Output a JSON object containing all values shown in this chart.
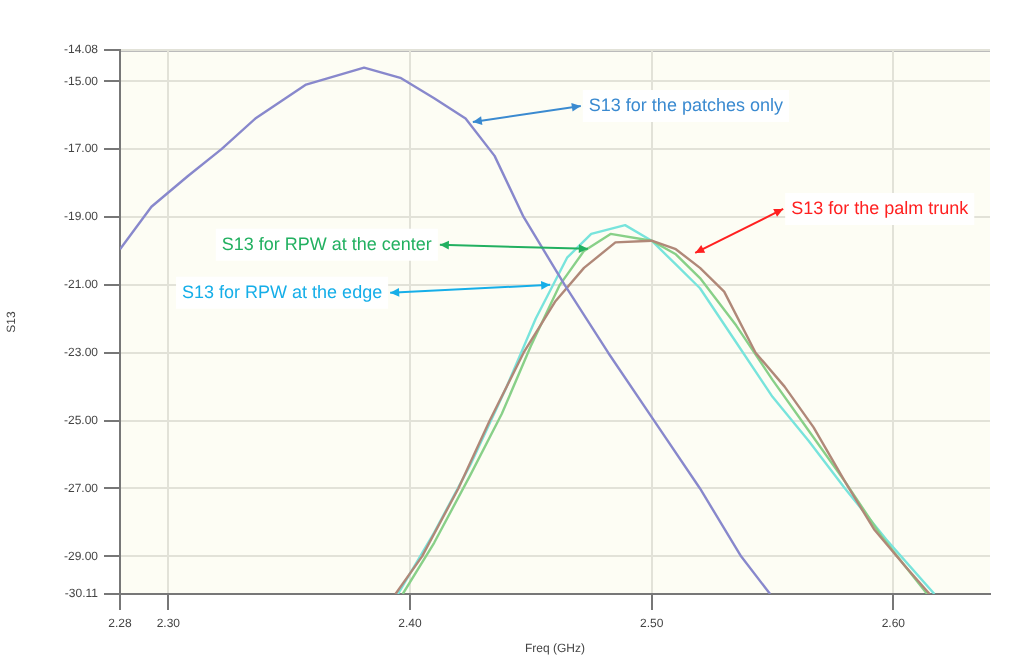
{
  "chart_data": {
    "type": "line",
    "xlabel": "Freq (GHz)",
    "ylabel": "S13",
    "xlim": [
      2.28,
      2.64
    ],
    "xticks": [
      {
        "value": 2.28,
        "label": "2.28"
      },
      {
        "value": 2.3,
        "label": "2.30"
      },
      {
        "value": 2.4,
        "label": "2.40"
      },
      {
        "value": 2.5,
        "label": "2.50"
      },
      {
        "value": 2.6,
        "label": "2.60"
      }
    ],
    "ylim": [
      -30.11,
      -14.08
    ],
    "yticks": [
      {
        "value": -30.11,
        "label": "-30.11"
      },
      {
        "value": -29,
        "label": "-29.00"
      },
      {
        "value": -27,
        "label": "-27.00"
      },
      {
        "value": -25,
        "label": "-25.00"
      },
      {
        "value": -23,
        "label": "-23.00"
      },
      {
        "value": -21,
        "label": "-21.00"
      },
      {
        "value": -19,
        "label": "-19.00"
      },
      {
        "value": -17,
        "label": "-17.00"
      },
      {
        "value": -15,
        "label": "-15.00"
      },
      {
        "value": -14.08,
        "label": "-14.08"
      }
    ],
    "grid": true,
    "marker": "none",
    "line_style": "solid",
    "series": [
      {
        "color": "#8888cc",
        "x": [
          2.28,
          2.293,
          2.308,
          2.322,
          2.336,
          2.357,
          2.381,
          2.396,
          2.41,
          2.423,
          2.435,
          2.447,
          2.464,
          2.482,
          2.501,
          2.52,
          2.537,
          2.549
        ],
        "values": [
          -19.95,
          -18.7,
          -17.8,
          -17.0,
          -16.1,
          -15.1,
          -14.6,
          -14.9,
          -15.5,
          -16.1,
          -17.2,
          -19.0,
          -21.0,
          -23.0,
          -25.0,
          -27.0,
          -29.0,
          -30.11
        ]
      },
      {
        "color": "#b08878",
        "x": [
          2.394,
          2.405,
          2.42,
          2.433,
          2.447,
          2.46,
          2.472,
          2.485,
          2.5,
          2.51,
          2.52,
          2.53,
          2.543,
          2.555,
          2.567,
          2.58,
          2.592,
          2.605,
          2.615
        ],
        "values": [
          -30.11,
          -29.0,
          -27.0,
          -25.0,
          -23.0,
          -21.5,
          -20.5,
          -19.75,
          -19.7,
          -19.95,
          -20.5,
          -21.2,
          -23.0,
          -24.0,
          -25.2,
          -26.8,
          -28.2,
          -29.3,
          -30.11
        ]
      },
      {
        "color": "#88d088",
        "x": [
          2.397,
          2.41,
          2.425,
          2.438,
          2.45,
          2.462,
          2.472,
          2.483,
          2.5,
          2.51,
          2.52,
          2.535,
          2.55,
          2.565,
          2.58,
          2.595,
          2.614
        ],
        "values": [
          -30.11,
          -28.6,
          -26.6,
          -24.8,
          -22.8,
          -21.0,
          -20.0,
          -19.5,
          -19.7,
          -20.1,
          -20.8,
          -22.2,
          -23.8,
          -25.3,
          -26.8,
          -28.4,
          -30.11
        ]
      },
      {
        "color": "#78e4dc",
        "x": [
          2.395,
          2.41,
          2.425,
          2.44,
          2.452,
          2.465,
          2.475,
          2.489,
          2.5,
          2.51,
          2.52,
          2.535,
          2.55,
          2.565,
          2.58,
          2.597,
          2.617
        ],
        "values": [
          -30.11,
          -28.3,
          -26.3,
          -24.0,
          -22.0,
          -20.2,
          -19.5,
          -19.24,
          -19.7,
          -20.4,
          -21.1,
          -22.7,
          -24.3,
          -25.6,
          -27.0,
          -28.5,
          -30.11
        ]
      }
    ],
    "annotations": [
      {
        "text": "S13 for the patches only",
        "x": 2.426,
        "y": -16.2
      },
      {
        "text": "S13 for RPW at the center",
        "x": 2.4736,
        "y": -19.94
      },
      {
        "text": "S13 for RPW at the edge",
        "x": 2.458,
        "y": -21.0
      },
      {
        "text": "S13 for the palm trunk",
        "x": 2.518,
        "y": -20.06
      }
    ]
  }
}
